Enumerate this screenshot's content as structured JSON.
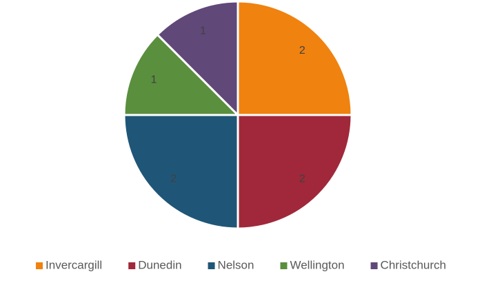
{
  "chart_data": {
    "type": "pie",
    "categories": [
      "Invercargill",
      "Dunedin",
      "Nelson",
      "Wellington",
      "Christchurch"
    ],
    "values": [
      2,
      2,
      2,
      1,
      1
    ],
    "colors": [
      "#f0820f",
      "#a0283a",
      "#1f5677",
      "#5a8f3e",
      "#604878"
    ],
    "legend": "bottom"
  }
}
